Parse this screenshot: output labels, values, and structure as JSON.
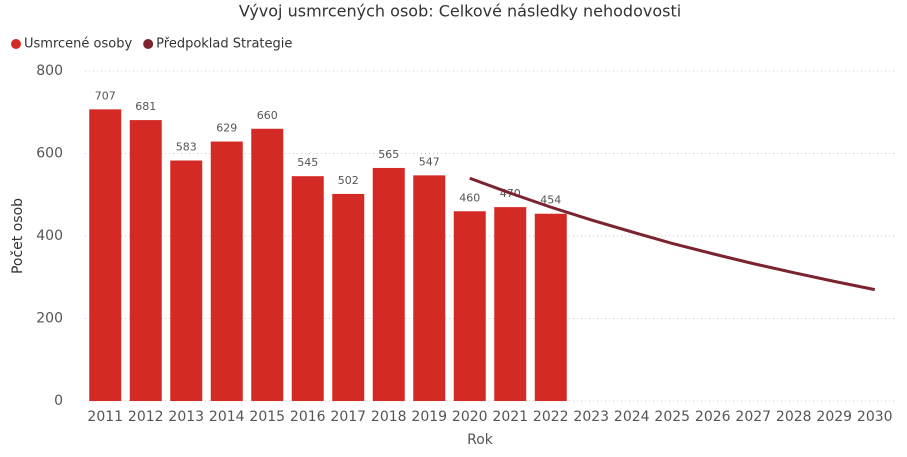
{
  "chart_data": {
    "type": "bar_line",
    "title": "Vývoj usmrcených osob: Celkové následky nehodovosti",
    "x_label": "Rok",
    "y_label": "Počet osob",
    "categories": [
      "2011",
      "2012",
      "2013",
      "2014",
      "2015",
      "2016",
      "2017",
      "2018",
      "2019",
      "2020",
      "2021",
      "2022",
      "2023",
      "2024",
      "2025",
      "2026",
      "2027",
      "2028",
      "2029",
      "2030"
    ],
    "series": [
      {
        "name": "Usmrcené osoby",
        "color": "#d42a25",
        "type": "bar",
        "values": [
          707,
          681,
          583,
          629,
          660,
          545,
          502,
          565,
          547,
          460,
          470,
          454,
          null,
          null,
          null,
          null,
          null,
          null,
          null,
          null
        ]
      },
      {
        "name": "Předpoklad Strategie",
        "color": "#7b2430",
        "type": "line",
        "values": [
          null,
          null,
          null,
          null,
          null,
          null,
          null,
          null,
          null,
          540,
          504,
          470,
          439,
          410,
          382,
          357,
          333,
          311,
          290,
          270
        ]
      }
    ],
    "ylim": [
      0,
      800
    ],
    "yticks": [
      0,
      200,
      400,
      600,
      800
    ],
    "grid": true
  }
}
